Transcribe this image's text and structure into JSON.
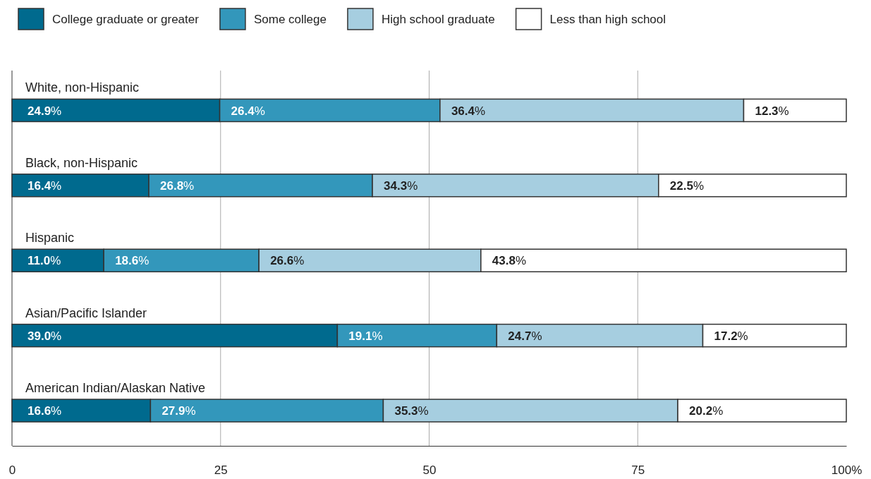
{
  "chart_data": {
    "type": "bar",
    "orientation": "horizontal",
    "stacked": true,
    "categories": [
      "White, non-Hispanic",
      "Black, non-Hispanic",
      "Hispanic",
      "Asian/Pacific Islander",
      "American Indian/Alaskan Native"
    ],
    "series": [
      {
        "name": "College graduate or greater",
        "color": "#006a8e",
        "values": [
          24.9,
          16.4,
          11.0,
          39.0,
          16.6
        ],
        "value_labels": [
          "24.9%",
          "16.4%",
          "11.0%",
          "39.0%",
          "16.6%"
        ]
      },
      {
        "name": "Some college",
        "color": "#3397bb",
        "values": [
          26.4,
          26.8,
          18.6,
          19.1,
          27.9
        ],
        "value_labels": [
          "26.4%",
          "26.8%",
          "18.6%",
          "19.1%",
          "27.9%"
        ]
      },
      {
        "name": "High school graduate",
        "color": "#a6cee0",
        "values": [
          36.4,
          34.3,
          26.6,
          24.7,
          35.3
        ],
        "value_labels": [
          "36.4%",
          "34.3%",
          "26.6%",
          "24.7%",
          "35.3%"
        ]
      },
      {
        "name": "Less than high school",
        "color": "#ffffff",
        "values": [
          12.3,
          22.5,
          43.8,
          17.2,
          20.2
        ],
        "value_labels": [
          "12.3%",
          "22.5%",
          "43.8%",
          "17.2%",
          "20.2%"
        ]
      }
    ],
    "xlim": [
      0,
      100
    ],
    "xticks": [
      0,
      25,
      50,
      75,
      {
        "value": 100,
        "label": "100%"
      }
    ],
    "grid": "x",
    "legend": "top left"
  }
}
